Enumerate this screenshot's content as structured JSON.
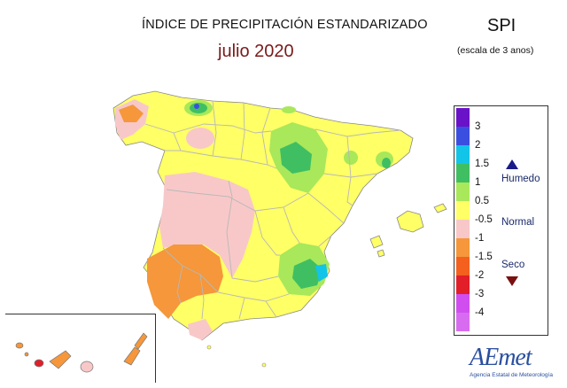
{
  "header": {
    "title": "ÍNDICE DE PRECIPITACIÓN ESTANDARIZADO",
    "subtitle": "julio 2020",
    "index_label": "SPI",
    "scale_note": "(escala de 3 anos)"
  },
  "legend": {
    "items": [
      {
        "label": "3",
        "color": "#6a12c8"
      },
      {
        "label": "2",
        "color": "#3a4fe0"
      },
      {
        "label": "1.5",
        "color": "#12c4e8"
      },
      {
        "label": "1",
        "color": "#3fbf62"
      },
      {
        "label": "0.5",
        "color": "#a8e85a"
      },
      {
        "label": "-0.5",
        "color": "#ffff66"
      },
      {
        "label": "-1",
        "color": "#f8c8c8"
      },
      {
        "label": "-1.5",
        "color": "#f5973a"
      },
      {
        "label": "-2",
        "color": "#f4601e"
      },
      {
        "label": "-3",
        "color": "#e21e28"
      },
      {
        "label": "-4",
        "color": "#d04ef0"
      },
      {
        "label": "",
        "color": "#d86cf0"
      }
    ],
    "wet_label": "Humedo",
    "normal_label": "Normal",
    "dry_label": "Seco"
  },
  "colors": {
    "normal": "#ffff66",
    "wet_light": "#a8e85a",
    "wet": "#3fbf62",
    "very_wet": "#12c4e8",
    "extreme_wet": "#3a4fe0",
    "dry": "#f8c8c8",
    "very_dry": "#f5973a",
    "severe_dry": "#f4601e",
    "extreme_dry": "#e21e28",
    "borders": "#b8b8b8"
  },
  "logo": {
    "name": "AEmet",
    "caption": "Agencia Estatal de Meteorología"
  }
}
